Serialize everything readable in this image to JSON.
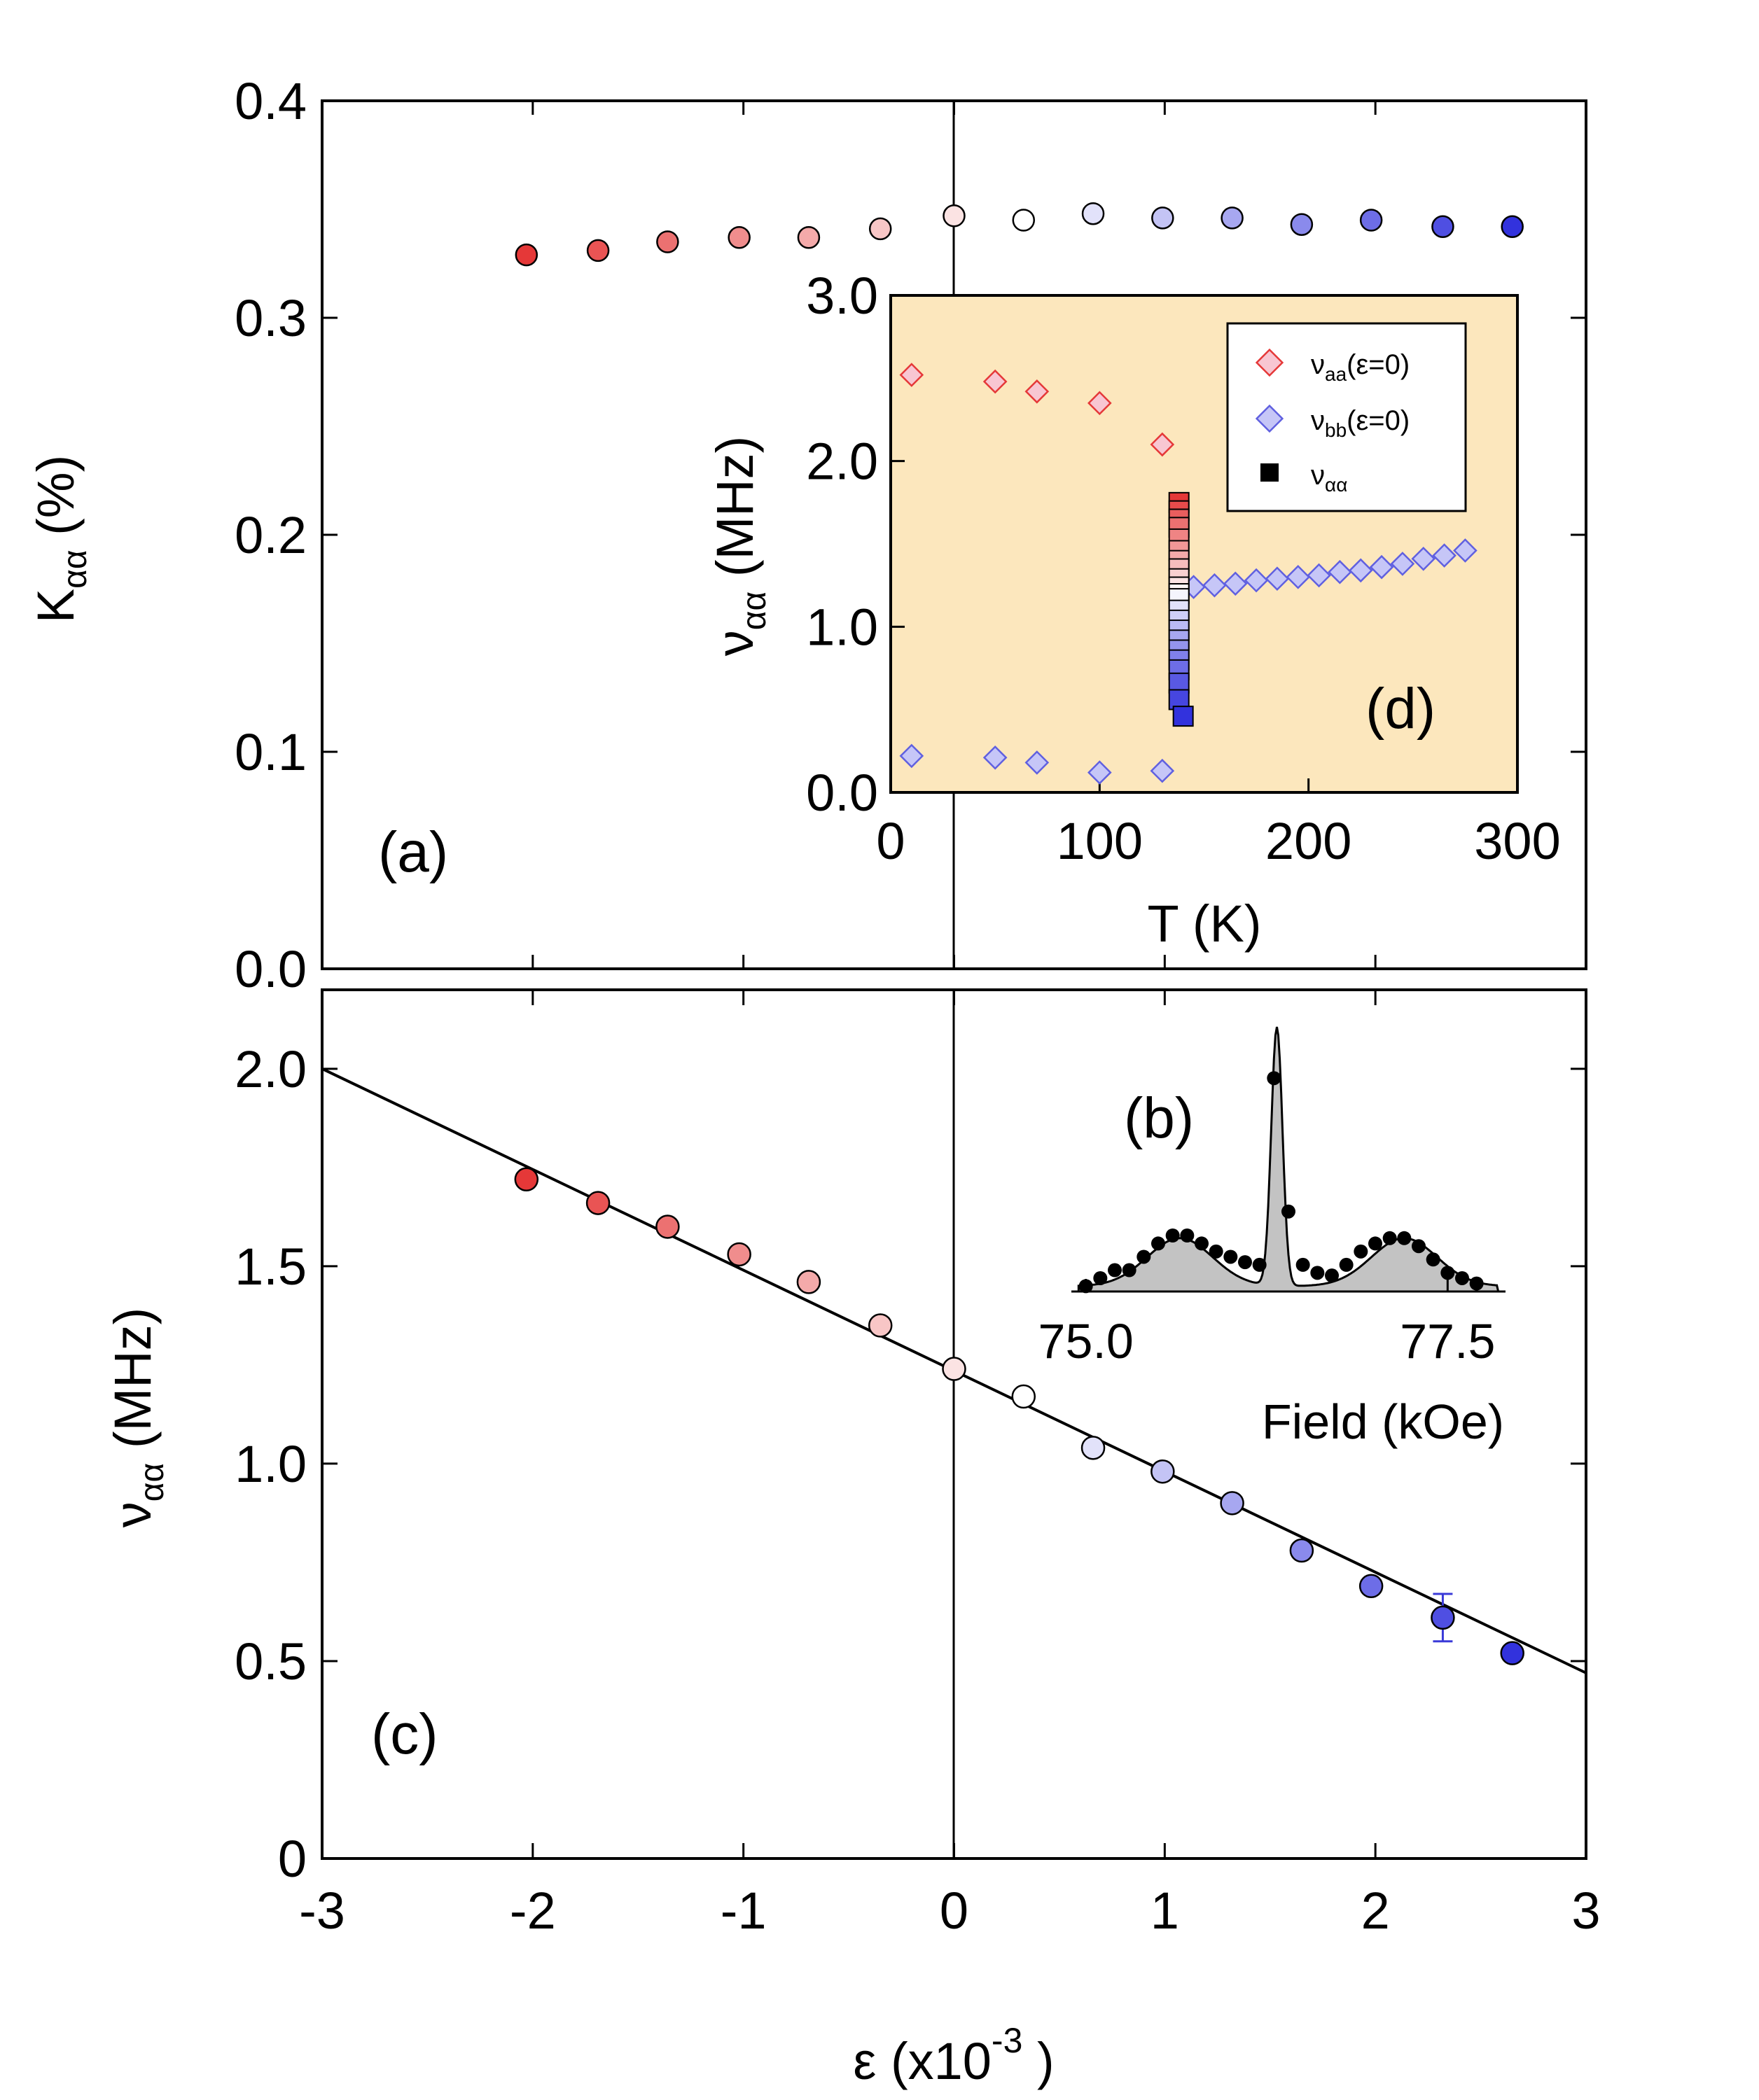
{
  "chart_data": [
    {
      "panel": "(a)",
      "type": "scatter",
      "ylabel": "K",
      "ylabel_sub": "αα",
      "ylabel_unit": " (%)",
      "ylim": [
        0,
        0.4
      ],
      "xlim": [
        -3,
        3
      ],
      "yticks": [
        "0.0",
        "0.1",
        "0.2",
        "0.3",
        "0.4"
      ],
      "x": [
        -2.03,
        -1.69,
        -1.36,
        -1.02,
        -0.69,
        -0.35,
        0.0,
        0.33,
        0.66,
        0.99,
        1.32,
        1.65,
        1.98,
        2.32,
        2.65
      ],
      "values": [
        0.329,
        0.331,
        0.335,
        0.337,
        0.337,
        0.341,
        0.347,
        0.345,
        0.348,
        0.346,
        0.346,
        0.343,
        0.345,
        0.342,
        0.342
      ]
    },
    {
      "panel": "(c)",
      "type": "scatter",
      "xlabel": "ε (x10",
      "xlabel_exp": "-3",
      "xlabel_end": " )",
      "ylabel": "ν",
      "ylabel_sub": "αα",
      "ylabel_unit": " (MHz)",
      "xlim": [
        -3,
        3
      ],
      "ylim": [
        0,
        2.2
      ],
      "xticks": [
        "-3",
        "-2",
        "-1",
        "0",
        "1",
        "2",
        "3"
      ],
      "yticks": [
        "0",
        "0.5",
        "1.0",
        "1.5",
        "2.0"
      ],
      "x": [
        -2.03,
        -1.69,
        -1.36,
        -1.02,
        -0.69,
        -0.35,
        0.0,
        0.33,
        0.66,
        0.99,
        1.32,
        1.65,
        1.98,
        2.32,
        2.65
      ],
      "values": [
        1.72,
        1.66,
        1.6,
        1.53,
        1.46,
        1.35,
        1.24,
        1.17,
        1.04,
        0.98,
        0.9,
        0.78,
        0.69,
        0.61,
        0.52
      ],
      "errorbar": {
        "x": 2.32,
        "y": 0.61,
        "err": 0.06
      },
      "fit_line": {
        "x": [
          -3,
          3
        ],
        "y": [
          2.0,
          0.47
        ]
      }
    },
    {
      "panel": "(b)",
      "type": "line",
      "xlabel": "Field (kOe)",
      "xlim": [
        74.9,
        77.9
      ],
      "ylim": [
        0,
        1.05
      ],
      "xticks": [
        "75.0",
        "77.5"
      ],
      "points_x": [
        75.0,
        75.1,
        75.2,
        75.3,
        75.4,
        75.5,
        75.6,
        75.7,
        75.8,
        75.9,
        76.0,
        76.1,
        76.2,
        76.3,
        76.4,
        76.5,
        76.6,
        76.7,
        76.8,
        76.9,
        77.0,
        77.1,
        77.2,
        77.3,
        77.4,
        77.5,
        77.6,
        77.7
      ],
      "points_y": [
        0.02,
        0.05,
        0.08,
        0.08,
        0.13,
        0.18,
        0.21,
        0.21,
        0.18,
        0.15,
        0.13,
        0.11,
        0.1,
        0.8,
        0.3,
        0.1,
        0.07,
        0.06,
        0.1,
        0.15,
        0.18,
        0.2,
        0.2,
        0.17,
        0.12,
        0.07,
        0.05,
        0.03
      ]
    },
    {
      "panel": "(d)",
      "type": "scatter",
      "xlabel": "T (K)",
      "ylabel": "ν",
      "ylabel_sub": "αα",
      "ylabel_unit": " (MHz)",
      "xlim": [
        0,
        300
      ],
      "ylim": [
        0,
        3.0
      ],
      "xticks": [
        "0",
        "100",
        "200",
        "300"
      ],
      "yticks": [
        "0.0",
        "1.0",
        "2.0",
        "3.0"
      ],
      "background": "#fce7bd",
      "legend": [
        {
          "label": "ν",
          "sub": "aa",
          "rest": "(ε=0)"
        },
        {
          "label": "ν",
          "sub": "bb",
          "rest": "(ε=0)"
        },
        {
          "label": "ν",
          "sub": "αα",
          "rest": ""
        }
      ],
      "series": [
        {
          "name": "ν_aa(ε=0)",
          "T": [
            10,
            50,
            70,
            100,
            130
          ],
          "values": [
            2.52,
            2.48,
            2.42,
            2.35,
            2.1
          ]
        },
        {
          "name": "ν_bb(ε=0) low",
          "T": [
            10,
            50,
            70,
            100,
            130
          ],
          "values": [
            0.22,
            0.21,
            0.18,
            0.12,
            0.13
          ]
        },
        {
          "name": "ν_bb(ε=0) high",
          "T": [
            145,
            155,
            165,
            175,
            185,
            195,
            205,
            215,
            225,
            235,
            245,
            255,
            265,
            275
          ],
          "values": [
            1.24,
            1.25,
            1.26,
            1.28,
            1.29,
            1.3,
            1.31,
            1.33,
            1.34,
            1.36,
            1.38,
            1.41,
            1.43,
            1.46
          ]
        },
        {
          "name": "ν_αα",
          "T": [
            138,
            138,
            138,
            138,
            138,
            138,
            138,
            138,
            138,
            138,
            138,
            138,
            138,
            138,
            138,
            138,
            138,
            138,
            138,
            138,
            138,
            140
          ],
          "values": [
            1.75,
            1.7,
            1.65,
            1.6,
            1.53,
            1.46,
            1.4,
            1.35,
            1.29,
            1.24,
            1.2,
            1.17,
            1.1,
            1.04,
            0.98,
            0.92,
            0.86,
            0.8,
            0.74,
            0.66,
            0.56,
            0.46
          ]
        }
      ]
    }
  ],
  "colors": {
    "red": "#e53838",
    "white": "#ffffff",
    "blue": "#3232dd",
    "fit": "#000000",
    "spectrum_fill": "#c3c3c3",
    "inset_bg": "#fce7bd"
  }
}
